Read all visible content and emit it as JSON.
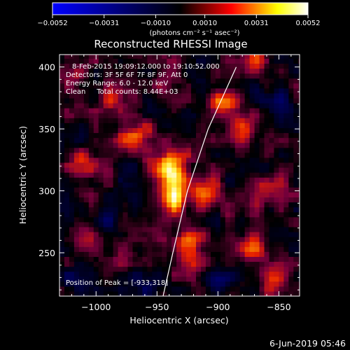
{
  "chart_data": {
    "type": "heatmap",
    "title": "Reconstructed RHESSI Image",
    "xlabel": "Heliocentric X (arcsec)",
    "ylabel": "Heliocentric Y (arcsec)",
    "xlim": [
      -1030,
      -833
    ],
    "ylim": [
      215,
      410
    ],
    "xticks": [
      -1000,
      -950,
      -900,
      -850
    ],
    "xtick_labels": [
      "−1000",
      "−950",
      "−900",
      "−850"
    ],
    "yticks": [
      250,
      300,
      350,
      400
    ],
    "ytick_labels": [
      "250",
      "300",
      "350",
      "400"
    ],
    "colorbar": {
      "min": -0.0052,
      "max": 0.0052,
      "ticks": [
        -0.0052,
        -0.0031,
        -0.001,
        0.001,
        0.0031,
        0.0052
      ],
      "tick_labels": [
        "−0.0052",
        "−0.0031",
        "−0.0010",
        "0.0010",
        "0.0031",
        "0.0052"
      ],
      "unit_label": "(photons cm⁻² s⁻¹ asec⁻²)",
      "colormap": [
        "#0000ff",
        "#000000",
        "#ff0000",
        "#ffff00",
        "#ffffff"
      ]
    },
    "annotations": {
      "time_range": "8-Feb-2015 19:09:12.000 to 19:10:52.000",
      "detectors": "Detectors: 3F 5F 6F 7F 8F 9F, Att 0",
      "energy": "Energy Range: 6.0 - 12.0 keV",
      "clean_total": "Clean     Total counts: 8.44E+03",
      "peak": "Position of Peak = [-933,318]"
    },
    "peak_position": [
      -933,
      318
    ],
    "limb_curve": [
      [
        -945,
        215
      ],
      [
        -937,
        250
      ],
      [
        -925,
        300
      ],
      [
        -908,
        350
      ],
      [
        -885,
        400
      ]
    ],
    "sources": [
      {
        "x": -938,
        "y": 318,
        "peak": 0.0052
      },
      {
        "x": -937,
        "y": 295,
        "peak": 0.0042
      },
      {
        "x": -968,
        "y": 345,
        "peak": 0.0031
      },
      {
        "x": -925,
        "y": 255,
        "peak": 0.0034
      },
      {
        "x": -912,
        "y": 300,
        "peak": 0.0024
      },
      {
        "x": -895,
        "y": 370,
        "peak": 0.0024
      },
      {
        "x": -880,
        "y": 350,
        "peak": 0.0027
      },
      {
        "x": -872,
        "y": 255,
        "peak": 0.0025
      },
      {
        "x": -860,
        "y": 300,
        "peak": 0.0021
      },
      {
        "x": -870,
        "y": 405,
        "peak": 0.0023
      },
      {
        "x": -1010,
        "y": 320,
        "peak": 0.0021
      },
      {
        "x": -1010,
        "y": 265,
        "peak": 0.0018
      },
      {
        "x": -985,
        "y": 375,
        "peak": 0.0019
      },
      {
        "x": -975,
        "y": 250,
        "peak": 0.0012
      },
      {
        "x": -1020,
        "y": 390,
        "peak": 0.0013
      },
      {
        "x": -855,
        "y": 230,
        "peak": 0.0019
      },
      {
        "x": -940,
        "y": 390,
        "peak": 0.001
      },
      {
        "x": -915,
        "y": 235,
        "peak": 0.0012
      },
      {
        "x": -990,
        "y": 280,
        "peak": -0.0015
      },
      {
        "x": -900,
        "y": 225,
        "peak": -0.0017
      },
      {
        "x": -1020,
        "y": 230,
        "peak": -0.0014
      },
      {
        "x": -850,
        "y": 370,
        "peak": -0.0015
      },
      {
        "x": -960,
        "y": 222,
        "peak": -0.0012
      }
    ]
  },
  "footer": {
    "date_stamp": "6-Jun-2019 05:46"
  }
}
